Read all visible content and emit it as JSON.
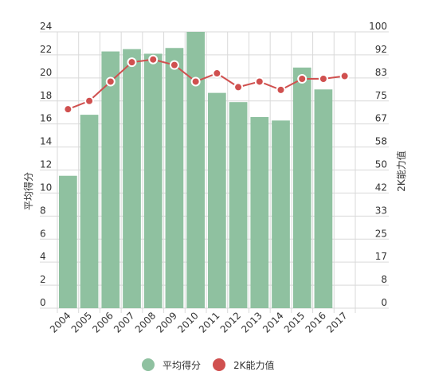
{
  "chart_data": {
    "type": "bar",
    "categories": [
      "2004",
      "2005",
      "2006",
      "2007",
      "2008",
      "2009",
      "2010",
      "2011",
      "2012",
      "2013",
      "2014",
      "2015",
      "2016",
      "2017"
    ],
    "series": [
      {
        "name": "平均得分",
        "type": "bar",
        "axis": "left",
        "color": "#8fc1a0",
        "values": [
          11.5,
          16.8,
          22.3,
          22.5,
          22.1,
          22.6,
          24.0,
          18.7,
          17.9,
          16.6,
          16.3,
          20.9,
          19.0,
          null
        ]
      },
      {
        "name": "2K能力值",
        "type": "line",
        "axis": "right",
        "color": "#d0504f",
        "values": [
          72,
          75,
          82,
          89,
          90,
          88,
          82,
          85,
          80,
          82,
          79,
          83,
          83,
          84
        ]
      }
    ],
    "ylabel_left": "平均得分",
    "ylabel_right": "2K能力值",
    "ylim_left": [
      0,
      24
    ],
    "ylim_right": [
      0,
      100
    ],
    "yticks_left": [
      "0",
      "2",
      "4",
      "6",
      "8",
      "10",
      "12",
      "14",
      "16",
      "18",
      "20",
      "22",
      "24"
    ],
    "yticks_right": [
      "0",
      "8",
      "17",
      "25",
      "33",
      "42",
      "50",
      "58",
      "67",
      "75",
      "83",
      "92",
      "100"
    ],
    "grid": true,
    "legend_position": "bottom"
  }
}
